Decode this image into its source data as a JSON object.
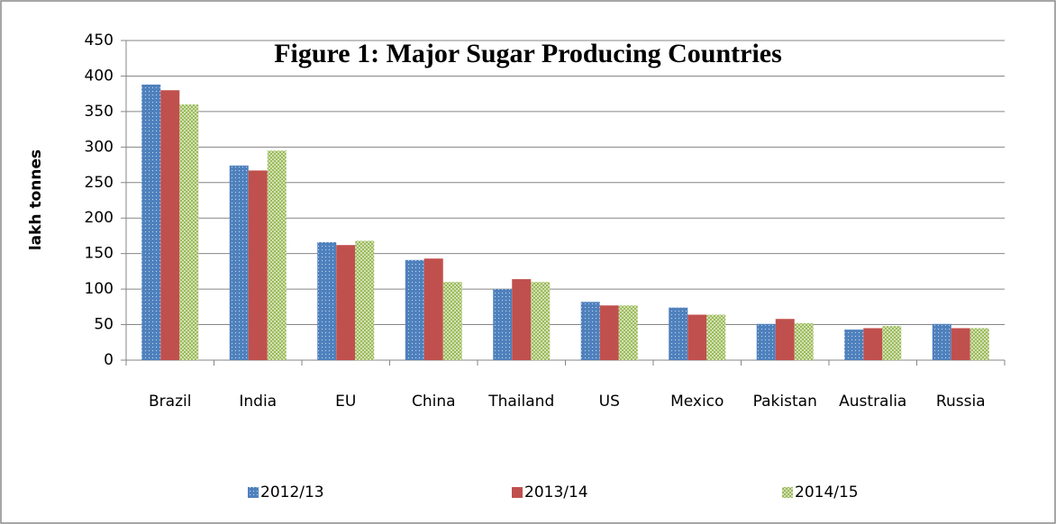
{
  "chart_data": {
    "type": "bar",
    "title": "Figure 1: Major Sugar Producing Countries",
    "y_label": "lakh tonnes",
    "categories": [
      "Brazil",
      "India",
      "EU",
      "China",
      "Thailand",
      "US",
      "Mexico",
      "Pakistan",
      "Australia",
      "Russia"
    ],
    "series": [
      {
        "name": "2012/13",
        "color": "#4f81bd",
        "values": [
          388,
          274,
          166,
          141,
          100,
          82,
          74,
          51,
          43,
          51
        ]
      },
      {
        "name": "2013/14",
        "color": "#c0504d",
        "values": [
          380,
          267,
          162,
          143,
          114,
          77,
          64,
          58,
          45,
          45
        ]
      },
      {
        "name": "2014/15",
        "color": "#9bbb59",
        "values": [
          360,
          295,
          168,
          110,
          110,
          77,
          64,
          52,
          48,
          45
        ]
      }
    ],
    "ylim": [
      0,
      450
    ],
    "yticks": [
      0,
      50,
      100,
      150,
      200,
      250,
      300,
      350,
      400,
      450
    ],
    "grid": true,
    "legend": "bottom"
  }
}
